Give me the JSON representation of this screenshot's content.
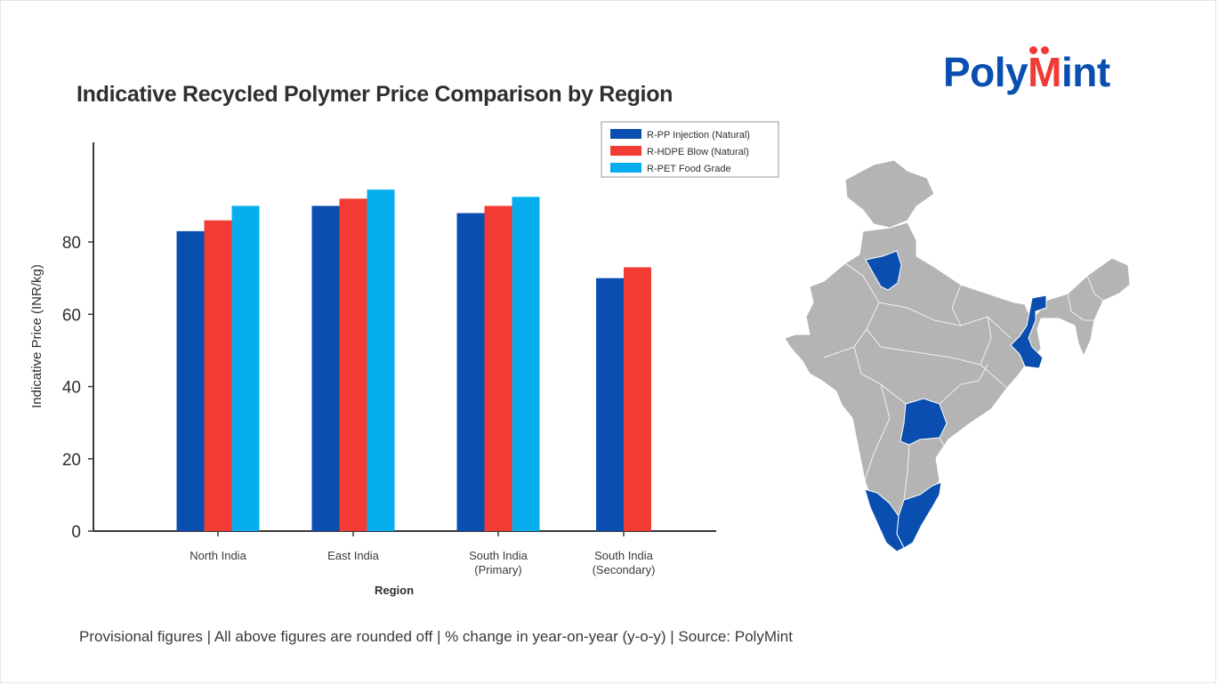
{
  "title": "Indicative Recycled Polymer Price Comparison by Region",
  "logo": {
    "prefix": "Poly",
    "accent": "M",
    "suffix": "int",
    "brand_color": "#0a4fb0",
    "accent_color": "#ef3b35"
  },
  "footer": "Provisional figures | All above figures are rounded off | % change in year-on-year (y-o-y) | Source: PolyMint",
  "chart_data": {
    "type": "bar",
    "title": "Indicative Recycled Polymer Price Comparison by Region",
    "xlabel": "Region",
    "ylabel": "Indicative Price (INR/kg)",
    "ylim": [
      0,
      108
    ],
    "yticks": [
      0,
      20,
      40,
      60,
      80
    ],
    "grid": false,
    "legend_position": "top-right",
    "categories": [
      [
        "North India"
      ],
      [
        "East India"
      ],
      [
        "South India",
        "(Primary)"
      ],
      [
        "South India",
        "(Secondary)"
      ]
    ],
    "series": [
      {
        "name": "R-PP Injection (Natural)",
        "color": "#0a4fb0",
        "values": [
          83,
          90,
          88,
          70
        ]
      },
      {
        "name": "R-HDPE Blow (Natural)",
        "color": "#f23c33",
        "values": [
          86,
          92,
          90,
          73
        ]
      },
      {
        "name": "R-PET Food Grade",
        "color": "#06aeef",
        "values": [
          90,
          94.5,
          92.5,
          null
        ]
      }
    ]
  },
  "map": {
    "base_color": "#b4b4b4",
    "highlight_color": "#0a4fb0",
    "highlighted_regions": [
      "Haryana-Delhi",
      "West Bengal",
      "Telangana",
      "Kerala",
      "Tamil Nadu"
    ]
  }
}
